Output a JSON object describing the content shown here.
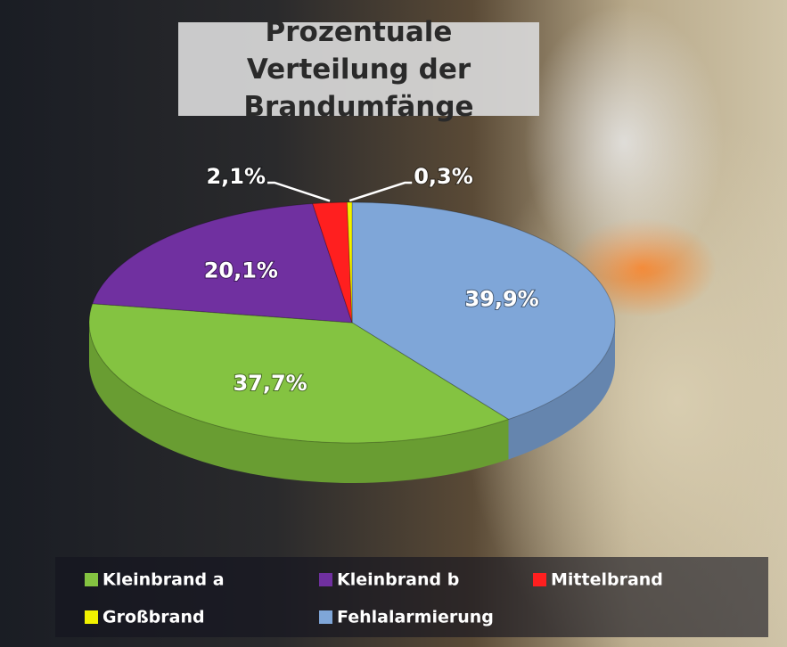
{
  "chart_data": {
    "type": "pie",
    "title": "Prozentuale Verteilung der Brandumfänge",
    "categories": [
      "Kleinbrand a",
      "Kleinbrand b",
      "Mittelbrand",
      "Großbrand",
      "Fehlalarmierung"
    ],
    "values": [
      37.7,
      20.1,
      2.1,
      0.3,
      39.9
    ],
    "value_labels": [
      "37,7%",
      "20,1%",
      "2,1%",
      "0,3%",
      "39,9%"
    ],
    "colors": [
      "#84c341",
      "#7030a0",
      "#ff1f1f",
      "#f2f200",
      "#7fa6d8"
    ],
    "legend": "bottom"
  }
}
